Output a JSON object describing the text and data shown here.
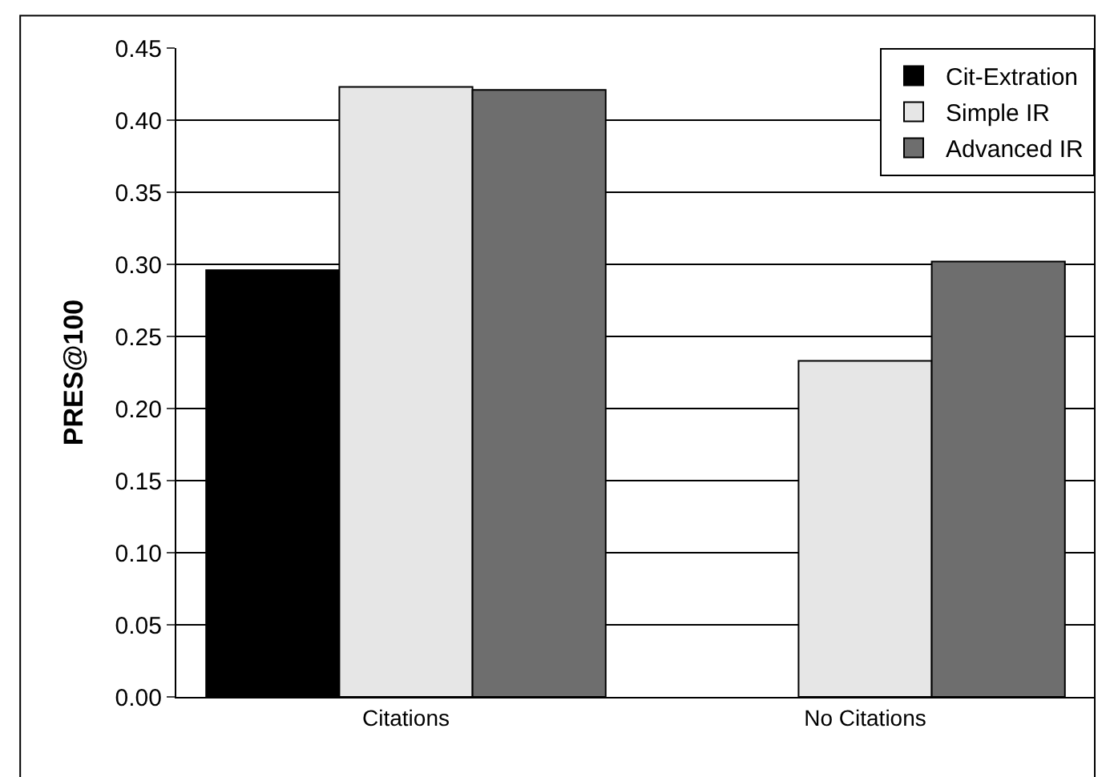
{
  "chart_data": {
    "type": "bar",
    "ylabel": "PRES@100",
    "categories": [
      "Citations",
      "No Citations"
    ],
    "series": [
      {
        "name": "Cit-Extration",
        "color": "#000000",
        "values": [
          0.296,
          null
        ]
      },
      {
        "name": "Simple IR",
        "color": "#e6e6e6",
        "values": [
          0.423,
          0.233
        ]
      },
      {
        "name": "Advanced IR",
        "color": "#6e6e6e",
        "values": [
          0.421,
          0.302
        ]
      }
    ],
    "ylim": [
      0,
      0.45
    ],
    "yticks": [
      {
        "value": 0,
        "label": "0.00"
      },
      {
        "value": 0.05,
        "label": "0.05"
      },
      {
        "value": 0.1,
        "label": "0.10"
      },
      {
        "value": 0.15,
        "label": "0.15"
      },
      {
        "value": 0.2,
        "label": "0.20"
      },
      {
        "value": 0.25,
        "label": "0.25"
      },
      {
        "value": 0.3,
        "label": "0.30"
      },
      {
        "value": 0.35,
        "label": "0.35"
      },
      {
        "value": 0.4,
        "label": "0.40"
      },
      {
        "value": 0.45,
        "label": "0.45"
      }
    ],
    "grid": "y",
    "legend": "top right"
  }
}
